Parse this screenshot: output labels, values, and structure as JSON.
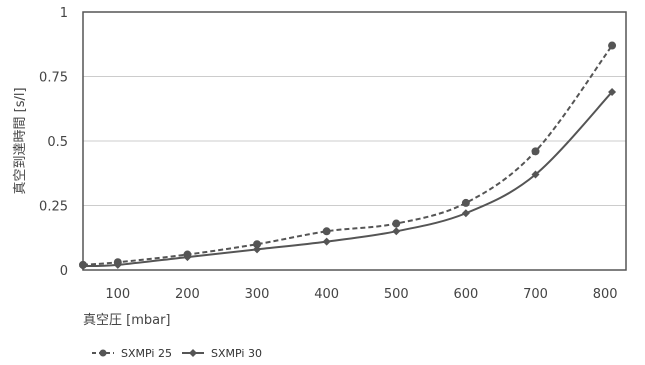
{
  "chart_data": {
    "type": "line",
    "x": [
      50,
      100,
      200,
      300,
      400,
      500,
      600,
      700,
      810
    ],
    "series": [
      {
        "name": "SXMPi 25",
        "values": [
          0.02,
          0.03,
          0.06,
          0.1,
          0.15,
          0.18,
          0.26,
          0.46,
          0.87
        ],
        "line_style": "dashed",
        "marker": "circle",
        "color": "#555555"
      },
      {
        "name": "SXMPi 30",
        "values": [
          0.015,
          0.02,
          0.05,
          0.08,
          0.11,
          0.15,
          0.22,
          0.37,
          0.69
        ],
        "line_style": "solid",
        "marker": "diamond",
        "color": "#555555"
      }
    ],
    "xlabel": "真空圧 [mbar]",
    "ylabel": "真空到達時間 [s/l]",
    "xlim": [
      50,
      830
    ],
    "ylim": [
      0,
      1
    ],
    "xticks": [
      "100",
      "200",
      "300",
      "400",
      "500",
      "600",
      "700",
      "800"
    ],
    "yticks": [
      "0",
      "0.25",
      "0.5",
      "0.75",
      "1"
    ],
    "grid": "horizontal",
    "legend_position": "bottom-left"
  }
}
